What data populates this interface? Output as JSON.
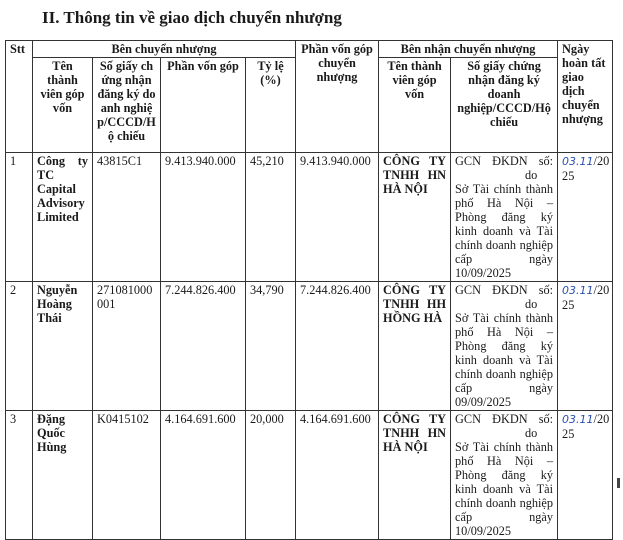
{
  "section_title": "II.  Thông tin về giao dịch chuyển nhượng",
  "headers": {
    "stt": "Stt",
    "transferor": "Bên chuyển nhượng",
    "transferor_name": "Tên thành viên góp vốn",
    "transferor_cert": "Số giấy chứng nhận đăng ký doanh nghiệp/CCCD/Hộ chiếu",
    "transferor_capital": "Phần vốn góp",
    "ratio": "Tỷ lệ (%)",
    "transferred_capital": "Phần vốn góp chuyển nhượng",
    "transferee": "Bên nhận chuyển nhượng",
    "transferee_name": "Tên thành viên góp vốn",
    "transferee_cert": "Số giấy chứng nhận đăng ký doanh nghiệp/CCCD/Hộ chiếu",
    "completion_date": "Ngày hoàn tất giao dịch chuyển nhượng"
  },
  "rows": [
    {
      "stt": "1",
      "name": "Công ty TC Capital Advisory Limited",
      "cert": "43815C1",
      "capital": "9.413.940.000",
      "ratio": "45,210",
      "transferred": "9.413.940.000",
      "recipient": "CÔNG TY TNHH HN HÀ NỘI",
      "recipient_cert_1": "GCN ĐKDN số:",
      "recipient_cert_2": "do Sở Tài chính thành phố Hà Nội – Phòng đăng ký kinh doanh và Tài chính doanh nghiệp cấp ngày 10/09/2025",
      "date_handwritten": "03.11",
      "date_printed_1": "/20",
      "date_printed_2": "25"
    },
    {
      "stt": "2",
      "name": "Nguyễn Hoàng Thái",
      "cert": "271081000001",
      "capital": "7.244.826.400",
      "ratio": "34,790",
      "transferred": "7.244.826.400",
      "recipient": "CÔNG TY TNHH HH HỒNG HÀ",
      "recipient_cert_1": "GCN ĐKDN số:",
      "recipient_cert_2": "do Sở Tài chính thành phố Hà Nội – Phòng đăng ký kinh doanh và Tài chính doanh nghiệp cấp ngày 09/09/2025",
      "date_handwritten": "03.11",
      "date_printed_1": "/20",
      "date_printed_2": "25"
    },
    {
      "stt": "3",
      "name": "Đặng Quốc Hùng",
      "cert": "K0415102",
      "capital": "4.164.691.600",
      "ratio": "20,000",
      "transferred": "4.164.691.600",
      "recipient": "CÔNG TY TNHH HN HÀ NỘI",
      "recipient_cert_1": "GCN ĐKDN số:",
      "recipient_cert_2": "do Sở Tài chính thành phố Hà Nội – Phòng đăng ký kinh doanh và Tài chính doanh nghiệp cấp ngày 10/09/2025",
      "date_handwritten": "03.11",
      "date_printed_1": "/20",
      "date_printed_2": "25"
    }
  ],
  "colors": {
    "handwriting": "#2a4fb0",
    "border": "#333333"
  }
}
